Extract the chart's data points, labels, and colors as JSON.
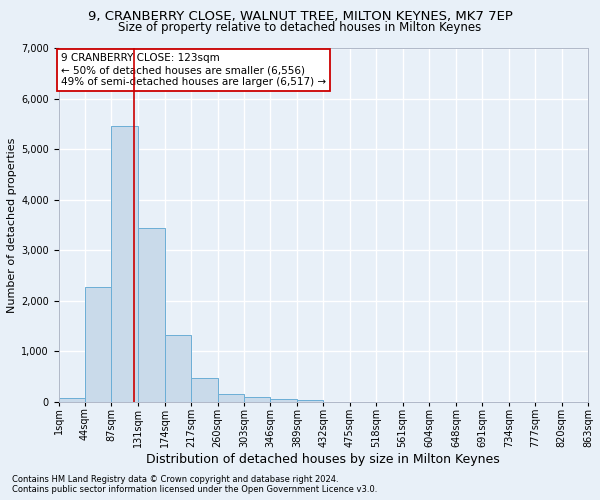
{
  "title_line1": "9, CRANBERRY CLOSE, WALNUT TREE, MILTON KEYNES, MK7 7EP",
  "title_line2": "Size of property relative to detached houses in Milton Keynes",
  "xlabel": "Distribution of detached houses by size in Milton Keynes",
  "ylabel": "Number of detached properties",
  "bar_color": "#c9daea",
  "bar_edge_color": "#6baed6",
  "marker_color": "#cc0000",
  "marker_value": 123,
  "bin_edges": [
    1,
    44,
    87,
    131,
    174,
    217,
    260,
    303,
    346,
    389,
    432,
    475,
    518,
    561,
    604,
    648,
    691,
    734,
    777,
    820,
    863
  ],
  "bin_labels": [
    "1sqm",
    "44sqm",
    "87sqm",
    "131sqm",
    "174sqm",
    "217sqm",
    "260sqm",
    "303sqm",
    "346sqm",
    "389sqm",
    "432sqm",
    "475sqm",
    "518sqm",
    "561sqm",
    "604sqm",
    "648sqm",
    "691sqm",
    "734sqm",
    "777sqm",
    "820sqm",
    "863sqm"
  ],
  "bar_heights": [
    75,
    2270,
    5470,
    3450,
    1320,
    470,
    160,
    90,
    55,
    30,
    0,
    0,
    0,
    0,
    0,
    0,
    0,
    0,
    0,
    0
  ],
  "ylim": [
    0,
    7000
  ],
  "yticks": [
    0,
    1000,
    2000,
    3000,
    4000,
    5000,
    6000,
    7000
  ],
  "annotation_text": "9 CRANBERRY CLOSE: 123sqm\n← 50% of detached houses are smaller (6,556)\n49% of semi-detached houses are larger (6,517) →",
  "annotation_box_color": "#ffffff",
  "annotation_box_edge": "#cc0000",
  "footnote1": "Contains HM Land Registry data © Crown copyright and database right 2024.",
  "footnote2": "Contains public sector information licensed under the Open Government Licence v3.0.",
  "bg_color": "#e8f0f8",
  "plot_bg_color": "#e8f0f8",
  "grid_color": "#ffffff",
  "title_fontsize": 9.5,
  "subtitle_fontsize": 8.5,
  "ylabel_fontsize": 8,
  "xlabel_fontsize": 9,
  "tick_fontsize": 7,
  "annot_fontsize": 7.5,
  "footnote_fontsize": 6
}
